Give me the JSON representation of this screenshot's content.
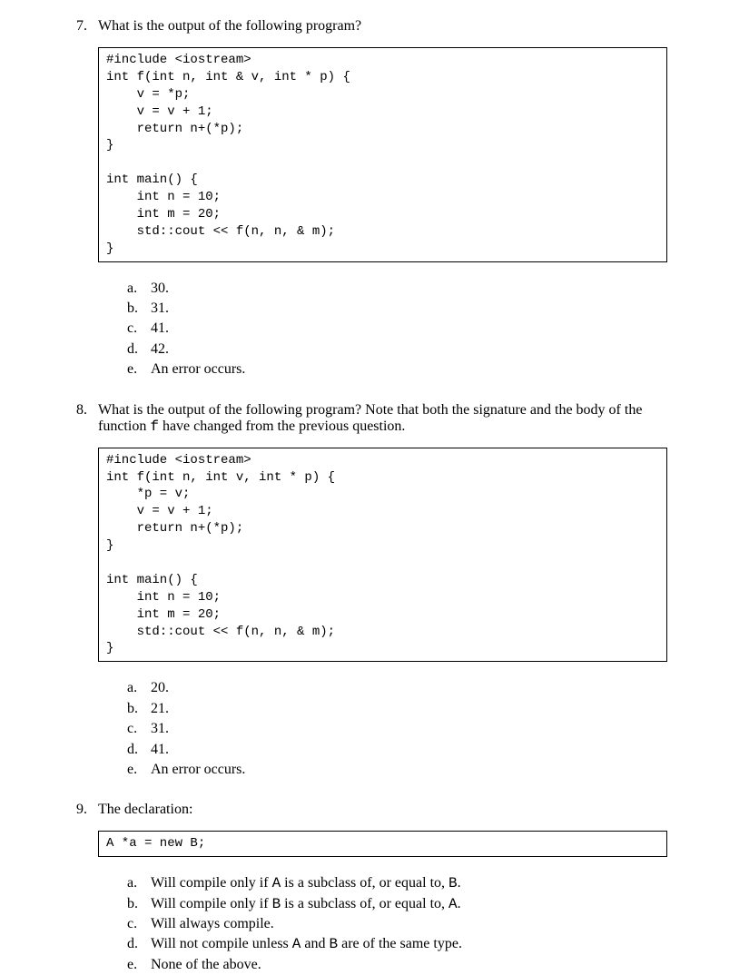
{
  "questions": [
    {
      "number": "7.",
      "prompt": "What is the output of the following program?",
      "code": "#include <iostream>\nint f(int n, int & v, int * p) {\n    v = *p;\n    v = v + 1;\n    return n+(*p);\n}\n\nint main() {\n    int n = 10;\n    int m = 20;\n    std::cout << f(n, n, & m);\n}",
      "answers": [
        {
          "letter": "a.",
          "text": "30."
        },
        {
          "letter": "b.",
          "text": "31."
        },
        {
          "letter": "c.",
          "text": "41."
        },
        {
          "letter": "d.",
          "text": "42."
        },
        {
          "letter": "e.",
          "text": "An error occurs."
        }
      ]
    },
    {
      "number": "8.",
      "prompt_pre": "What is the output of the following program?  Note that both the signature and the body of the function ",
      "prompt_code": "f",
      "prompt_post": " have changed from the previous question.",
      "code": "#include <iostream>\nint f(int n, int v, int * p) {\n    *p = v;\n    v = v + 1;\n    return n+(*p);\n}\n\nint main() {\n    int n = 10;\n    int m = 20;\n    std::cout << f(n, n, & m);\n}",
      "answers": [
        {
          "letter": "a.",
          "text": "20."
        },
        {
          "letter": "b.",
          "text": "21."
        },
        {
          "letter": "c.",
          "text": "31."
        },
        {
          "letter": "d.",
          "text": "41."
        },
        {
          "letter": "e.",
          "text": "An error occurs."
        }
      ]
    },
    {
      "number": "9.",
      "prompt": "The declaration:",
      "code": "A *a = new B;",
      "answers": [
        {
          "letter": "a.",
          "pre": "Will compile only if ",
          "c1": "A",
          "mid1": " is a subclass of, or equal to, ",
          "c2": "B",
          "post": "."
        },
        {
          "letter": "b.",
          "pre": "Will compile only if ",
          "c1": "B",
          "mid1": " is a subclass of, or equal to, ",
          "c2": "A",
          "post": "."
        },
        {
          "letter": "c.",
          "text": "Will always compile."
        },
        {
          "letter": "d.",
          "pre": "Will not compile unless ",
          "c1": "A",
          "mid1": " and ",
          "c2": "B",
          "post": " are of the same type."
        },
        {
          "letter": "e.",
          "text": "None of the above."
        }
      ]
    }
  ]
}
